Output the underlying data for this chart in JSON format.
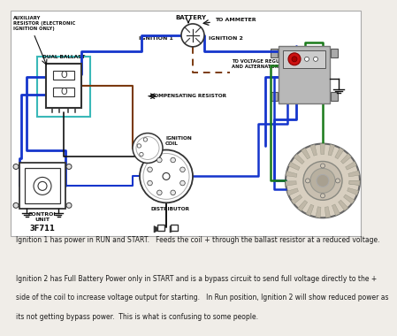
{
  "bg_color": "#f0ede8",
  "diagram_bg": "#f0ede8",
  "text_color": "#1a1a1a",
  "wire_blue": "#1535cc",
  "wire_brown": "#7B3A10",
  "wire_green": "#1a7a1a",
  "wire_black": "#111111",
  "wire_cyan": "#3ab8b8",
  "outline": "#333333",
  "labels": {
    "aux_resistor": "AUXILIARY\nRESISTOR (ELECTRONIC\nIGNITION ONLY)",
    "dual_ballast": "DUAL BALLAST",
    "battery": "BATTERY",
    "to_ammeter": "TO AMMETER",
    "ignition1": "IGNITION 1",
    "ignition2": "IGNITION 2",
    "to_voltage": "TO VOLTAGE REGULATOR\nAND ALTERNATOR FIELD",
    "comp_resistor": "COMPENSATING RESISTOR",
    "ignition_coil": "IGNITION\nCOIL",
    "distributor": "DISTRIBUTOR",
    "control_unit": "CONTROL\nUNIT",
    "code": "3F711"
  },
  "caption_lines": [
    "Ignition 1 has power in RUN and START.   Feeds the coil + through the ballast resistor at a reduced voltage.",
    "Ignition 2 has Full Battery Power only in START and is a bypass circuit to send full voltage directly to the +",
    "side of the coil to increase voltage output for starting.   In Run position, Ignition 2 will show reduced power as",
    "its not getting bypass power.  This is what is confusing to some people."
  ]
}
